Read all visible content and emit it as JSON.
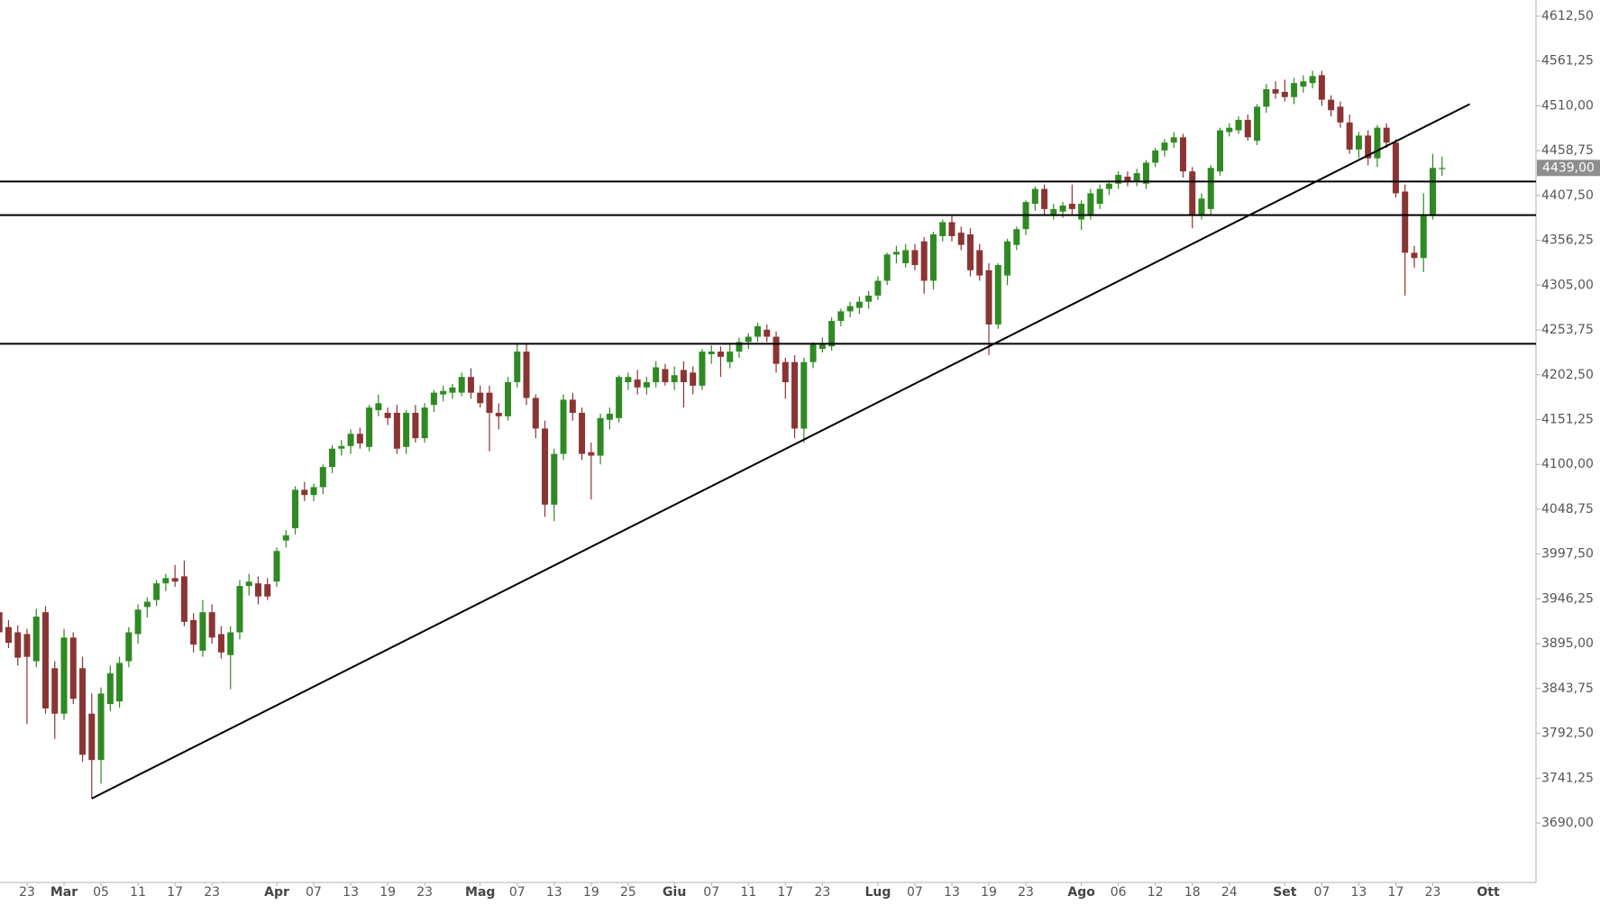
{
  "chart_data": {
    "type": "candlestick",
    "up_color": "#2f8a23",
    "down_color": "#8b3434",
    "categories": [
      null,
      null,
      null,
      "23",
      null,
      null,
      null,
      "Mar",
      null,
      null,
      null,
      "05",
      null,
      null,
      null,
      "11",
      null,
      null,
      null,
      "17",
      null,
      null,
      null,
      "23",
      null,
      null,
      null,
      null,
      null,
      null,
      "Apr",
      null,
      null,
      null,
      "07",
      null,
      null,
      null,
      "13",
      null,
      null,
      null,
      "19",
      null,
      null,
      null,
      "23",
      null,
      null,
      null,
      null,
      null,
      "Mag",
      null,
      null,
      null,
      "07",
      null,
      null,
      null,
      "13",
      null,
      null,
      null,
      "19",
      null,
      null,
      null,
      "25",
      null,
      null,
      null,
      null,
      "Giu",
      null,
      null,
      null,
      "07",
      null,
      null,
      null,
      "11",
      null,
      null,
      null,
      "17",
      null,
      null,
      null,
      "23",
      null,
      null,
      null,
      null,
      null,
      "Lug",
      null,
      null,
      null,
      "07",
      null,
      null,
      null,
      "13",
      null,
      null,
      null,
      "19",
      null,
      null,
      null,
      "23",
      null,
      null,
      null,
      null,
      null,
      "Ago",
      null,
      null,
      null,
      "06",
      null,
      null,
      null,
      "12",
      null,
      null,
      null,
      "18",
      null,
      null,
      null,
      "24",
      null,
      null,
      null,
      null,
      null,
      "Set",
      null,
      null,
      null,
      "07",
      null,
      null,
      null,
      "13",
      null,
      null,
      null,
      "17",
      null,
      null,
      null,
      "23",
      null,
      null,
      null,
      null,
      null,
      "Ott",
      null,
      null,
      null,
      null,
      null
    ],
    "open": [
      3931,
      3914,
      3908,
      3906,
      3875,
      3931,
      3867,
      3815,
      3902,
      3867,
      3815,
      3762,
      3826,
      3829,
      3875,
      3906,
      3937,
      3945,
      3964,
      3970,
      3972,
      3922,
      3887,
      3931,
      3906,
      3882,
      3908,
      3961,
      3964,
      3963,
      3966,
      4013,
      4027,
      4071,
      4065,
      4074,
      4097,
      4118,
      4121,
      4135,
      4120,
      4162,
      4159,
      4159,
      4120,
      4159,
      4130,
      4168,
      4180,
      4182,
      4182,
      4200,
      4182,
      4182,
      4159,
      4155,
      4194,
      4229,
      4176,
      4141,
      4054,
      4112,
      4174,
      4159,
      4114,
      4110,
      4151,
      4153,
      4194,
      4197,
      4188,
      4194,
      4209,
      4194,
      4208,
      4205,
      4190,
      4226,
      4229,
      4217,
      4229,
      4240,
      4246,
      4254,
      4246,
      4217,
      4217,
      4141,
      4217,
      4232,
      4235,
      4264,
      4275,
      4279,
      4286,
      4293,
      4310,
      4340,
      4330,
      4345,
      4355,
      4310,
      4361,
      4377,
      4365,
      4363,
      4345,
      4322,
      4260,
      4316,
      4351,
      4369,
      4398,
      4415,
      4386,
      4389,
      4398,
      4380,
      4386,
      4398,
      4415,
      4421,
      4429,
      4424,
      4421,
      4445,
      4459,
      4468,
      4474,
      4435,
      4386,
      4392,
      4435,
      4480,
      4482,
      4494,
      4470,
      4509,
      4529,
      4526,
      4520,
      4532,
      4536,
      4545,
      4517,
      4509,
      4491,
      4460,
      4476,
      4450,
      4485,
      4468,
      4412,
      4342,
      4336,
      4384,
      4439,
      null,
      null,
      null,
      null,
      null,
      null,
      null,
      null,
      null,
      null
    ],
    "high": [
      3940,
      3922,
      3916,
      3912,
      3935,
      3938,
      3875,
      3912,
      3908,
      3880,
      3838,
      3845,
      3870,
      3880,
      3914,
      3940,
      3948,
      3968,
      3975,
      3985,
      3990,
      3930,
      3945,
      3940,
      3915,
      3915,
      3968,
      3975,
      3972,
      3970,
      4005,
      4025,
      4075,
      4080,
      4078,
      4100,
      4122,
      4128,
      4140,
      4142,
      4168,
      4180,
      4165,
      4168,
      4162,
      4168,
      4170,
      4185,
      4190,
      4192,
      4205,
      4210,
      4190,
      4190,
      4170,
      4200,
      4238,
      4238,
      4180,
      4150,
      4118,
      4180,
      4182,
      4165,
      4125,
      4158,
      4165,
      4202,
      4205,
      4208,
      4200,
      4218,
      4215,
      4212,
      4218,
      4212,
      4232,
      4236,
      4235,
      4238,
      4245,
      4250,
      4262,
      4260,
      4252,
      4222,
      4225,
      4222,
      4240,
      4245,
      4268,
      4278,
      4286,
      4292,
      4298,
      4315,
      4342,
      4350,
      4352,
      4352,
      4360,
      4366,
      4380,
      4385,
      4372,
      4370,
      4352,
      4330,
      4330,
      4358,
      4372,
      4402,
      4418,
      4420,
      4398,
      4400,
      4420,
      4402,
      4415,
      4420,
      4425,
      4435,
      4435,
      4438,
      4448,
      4462,
      4472,
      4480,
      4478,
      4440,
      4410,
      4442,
      4485,
      4490,
      4498,
      4500,
      4512,
      4535,
      4538,
      4540,
      4542,
      4545,
      4550,
      4550,
      4522,
      4515,
      4500,
      4480,
      4482,
      4488,
      4490,
      4472,
      4420,
      4350,
      4410,
      4455,
      4452,
      null,
      null,
      null,
      null,
      null,
      null,
      null,
      null,
      null,
      null
    ],
    "low": [
      3904,
      3890,
      3870,
      3803,
      3868,
      3815,
      3786,
      3808,
      3826,
      3760,
      3718,
      3735,
      3818,
      3822,
      3868,
      3895,
      3925,
      3938,
      3955,
      3960,
      3915,
      3885,
      3880,
      3895,
      3878,
      3843,
      3900,
      3950,
      3940,
      3945,
      3960,
      4005,
      4020,
      4058,
      4058,
      4066,
      4090,
      4110,
      4112,
      4118,
      4115,
      4155,
      4145,
      4112,
      4112,
      4125,
      4125,
      4160,
      4172,
      4175,
      4178,
      4175,
      4165,
      4115,
      4140,
      4150,
      4188,
      4168,
      4130,
      4040,
      4035,
      4105,
      4150,
      4105,
      4060,
      4100,
      4140,
      4148,
      4185,
      4180,
      4180,
      4188,
      4190,
      4185,
      4165,
      4180,
      4185,
      4215,
      4200,
      4210,
      4222,
      4232,
      4240,
      4240,
      4205,
      4175,
      4130,
      4125,
      4210,
      4228,
      4230,
      4258,
      4268,
      4272,
      4278,
      4288,
      4305,
      4330,
      4325,
      4322,
      4295,
      4300,
      4355,
      4355,
      4345,
      4315,
      4310,
      4225,
      4255,
      4305,
      4345,
      4362,
      4390,
      4385,
      4380,
      4382,
      4385,
      4368,
      4380,
      4392,
      4408,
      4415,
      4418,
      4418,
      4415,
      4440,
      4452,
      4462,
      4428,
      4370,
      4380,
      4385,
      4430,
      4475,
      4478,
      4470,
      4465,
      4502,
      4518,
      4515,
      4512,
      4525,
      4530,
      4510,
      4498,
      4485,
      4455,
      4450,
      4442,
      4440,
      4462,
      4405,
      4293,
      4325,
      4320,
      4380,
      4430,
      null,
      null,
      null,
      null,
      null,
      null,
      null,
      null,
      null,
      null
    ],
    "close": [
      3908,
      3896,
      3879,
      3880,
      3926,
      3821,
      3815,
      3902,
      3832,
      3768,
      3762,
      3838,
      3861,
      3873,
      3908,
      3934,
      3943,
      3964,
      3970,
      3966,
      3920,
      3894,
      3931,
      3902,
      3885,
      3908,
      3961,
      3966,
      3949,
      3949,
      4001,
      4019,
      4071,
      4065,
      4074,
      4097,
      4118,
      4121,
      4135,
      4124,
      4165,
      4170,
      4153,
      4118,
      4159,
      4130,
      4165,
      4182,
      4184,
      4188,
      4200,
      4182,
      4170,
      4159,
      4155,
      4194,
      4229,
      4176,
      4141,
      4054,
      4112,
      4174,
      4159,
      4112,
      4110,
      4153,
      4158,
      4200,
      4200,
      4188,
      4194,
      4211,
      4194,
      4202,
      4194,
      4190,
      4229,
      4229,
      4223,
      4229,
      4240,
      4246,
      4258,
      4246,
      4215,
      4194,
      4141,
      4217,
      4237,
      4237,
      4264,
      4275,
      4281,
      4286,
      4293,
      4310,
      4340,
      4343,
      4345,
      4328,
      4310,
      4363,
      4377,
      4361,
      4351,
      4322,
      4316,
      4260,
      4328,
      4355,
      4369,
      4400,
      4415,
      4392,
      4392,
      4396,
      4392,
      4398,
      4410,
      4415,
      4421,
      4431,
      4424,
      4433,
      4445,
      4459,
      4468,
      4474,
      4435,
      4386,
      4404,
      4439,
      4482,
      4485,
      4494,
      4474,
      4509,
      4529,
      4524,
      4520,
      4536,
      4538,
      4544,
      4517,
      4505,
      4491,
      4460,
      4476,
      4450,
      4485,
      4468,
      4410,
      4342,
      4336,
      4384,
      4439,
      4439,
      null,
      null,
      null,
      null,
      null,
      null,
      null,
      null,
      null,
      null
    ],
    "ylim": [
      3622,
      4631
    ],
    "yticks": [
      {
        "value": 3690,
        "label": "3690,00"
      },
      {
        "value": 3741.25,
        "label": "3741,25"
      },
      {
        "value": 3792.5,
        "label": "3792,50"
      },
      {
        "value": 3843.75,
        "label": "3843,75"
      },
      {
        "value": 3895,
        "label": "3895,00"
      },
      {
        "value": 3946.25,
        "label": "3946,25"
      },
      {
        "value": 3997.5,
        "label": "3997,50"
      },
      {
        "value": 4048.75,
        "label": "4048,75"
      },
      {
        "value": 4100,
        "label": "4100,00"
      },
      {
        "value": 4151.25,
        "label": "4151,25"
      },
      {
        "value": 4202.5,
        "label": "4202,50"
      },
      {
        "value": 4253.75,
        "label": "4253,75"
      },
      {
        "value": 4305,
        "label": "4305,00"
      },
      {
        "value": 4356.25,
        "label": "4356,25"
      },
      {
        "value": 4407.5,
        "label": "4407,50"
      },
      {
        "value": 4458.75,
        "label": "4458,75"
      },
      {
        "value": 4510,
        "label": "4510,00"
      },
      {
        "value": 4561.25,
        "label": "4561,25"
      },
      {
        "value": 4612.5,
        "label": "4612,50"
      }
    ],
    "last_price": {
      "value": 4439,
      "label": "4439,00"
    },
    "hlines": [
      4423.5,
      4385,
      4238
    ],
    "trendline": {
      "x": [
        10,
        159
      ],
      "y": [
        3718,
        4512
      ]
    },
    "line_color": "#000000"
  }
}
